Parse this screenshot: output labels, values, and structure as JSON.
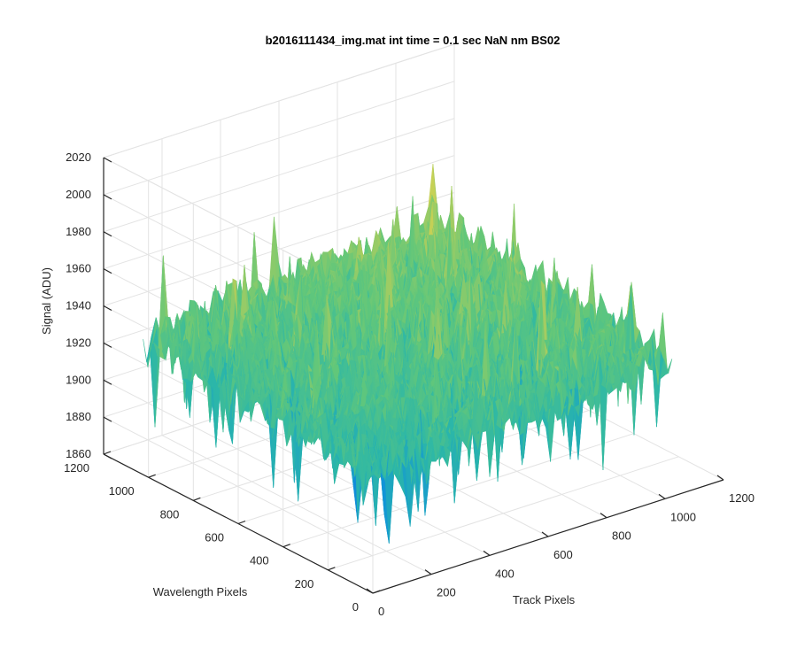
{
  "chart_data": {
    "type": "surface",
    "title": "b2016111434_img.mat int time = 0.1 sec  NaN nm BS02",
    "xlabel": "Track Pixels",
    "ylabel": "Wavelength Pixels",
    "zlabel": "Signal (ADU)",
    "xlim": [
      0,
      1200
    ],
    "ylim": [
      0,
      1200
    ],
    "zlim": [
      1860,
      2020
    ],
    "x_ticks": [
      "0",
      "200",
      "400",
      "600",
      "800",
      "1000",
      "1200"
    ],
    "y_ticks": [
      "0",
      "200",
      "400",
      "600",
      "800",
      "1000",
      "1200"
    ],
    "z_ticks": [
      "1860",
      "1880",
      "1900",
      "1920",
      "1940",
      "1960",
      "1980",
      "2000",
      "2020"
    ],
    "data_extent": {
      "x": [
        0,
        1024
      ],
      "y": [
        0,
        1024
      ]
    },
    "baseline_signal": 1930,
    "max_signal": 2010,
    "min_signal": 1870,
    "grid": true,
    "colormap": [
      "#0a5ce8",
      "#1196d6",
      "#2cb7a8",
      "#62c77a",
      "#b8ce5a",
      "#ecd84a"
    ]
  }
}
